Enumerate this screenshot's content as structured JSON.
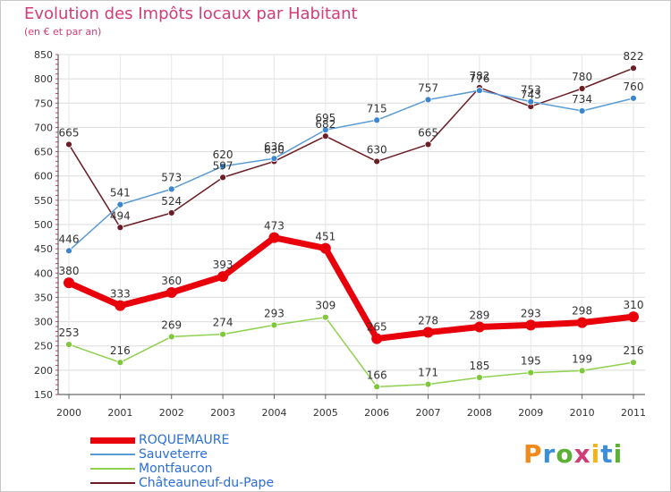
{
  "title": "Evolution des Impôts locaux par Habitant",
  "subtitle": "(en € et par an)",
  "logo": {
    "text": "Proxiti",
    "colors": [
      "#f08a1c",
      "#3b8fd8",
      "#5bb035",
      "#d23c78",
      "#f0b41c",
      "#3b8fd8",
      "#5bb035"
    ]
  },
  "chart_data": {
    "type": "line",
    "title": "Evolution des Impôts locaux par Habitant",
    "subtitle": "(en € et par an)",
    "xlabel": "",
    "ylabel": "",
    "x": [
      "2000",
      "2001",
      "2002",
      "2003",
      "2004",
      "2005",
      "2006",
      "2007",
      "2008",
      "2009",
      "2010",
      "2011"
    ],
    "ylim": [
      150,
      850
    ],
    "yticks": [
      150,
      200,
      250,
      300,
      350,
      400,
      450,
      500,
      550,
      600,
      650,
      700,
      750,
      800,
      850
    ],
    "grid": true,
    "series": [
      {
        "name": "ROQUEMAURE",
        "color": "#e8000b",
        "values": [
          380,
          333,
          360,
          393,
          473,
          451,
          265,
          278,
          289,
          293,
          298,
          310
        ]
      },
      {
        "name": "Sauveterre",
        "color": "#5b9bd5",
        "values": [
          446,
          541,
          573,
          620,
          636,
          695,
          715,
          757,
          776,
          753,
          734,
          760
        ]
      },
      {
        "name": "Montfaucon",
        "color": "#8fd14f",
        "values": [
          253,
          216,
          269,
          274,
          293,
          309,
          166,
          171,
          185,
          195,
          199,
          216
        ]
      },
      {
        "name": "Châteauneuf-du-Pape",
        "color": "#6b1c24",
        "values": [
          665,
          494,
          524,
          597,
          630,
          682,
          630,
          665,
          782,
          743,
          780,
          822
        ]
      }
    ]
  }
}
